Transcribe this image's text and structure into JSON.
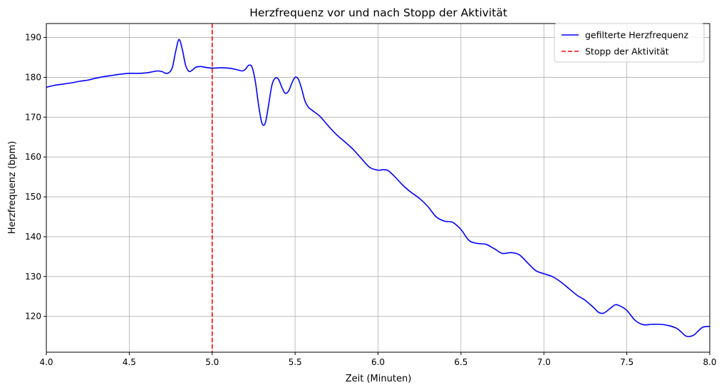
{
  "chart_data": {
    "type": "line",
    "title": "Herzfrequenz vor und nach Stopp der Aktivität",
    "xlabel": "Zeit (Minuten)",
    "ylabel": "Herzfrequenz (bpm)",
    "xlim": [
      4.0,
      8.0
    ],
    "ylim": [
      111,
      193.5
    ],
    "xticks": [
      4.0,
      4.5,
      5.0,
      5.5,
      6.0,
      6.5,
      7.0,
      7.5,
      8.0
    ],
    "xtick_labels": [
      "4.0",
      "4.5",
      "5.0",
      "5.5",
      "6.0",
      "6.5",
      "7.0",
      "7.5",
      "8.0"
    ],
    "yticks": [
      120,
      130,
      140,
      150,
      160,
      170,
      180,
      190
    ],
    "ytick_labels": [
      "120",
      "130",
      "140",
      "150",
      "160",
      "170",
      "180",
      "190"
    ],
    "grid": true,
    "legend_position": "top-right",
    "series": [
      {
        "name": "gefilterte Herzfrequenz",
        "color": "#0000ff",
        "style": "solid",
        "x": [
          4.0,
          4.05,
          4.1,
          4.15,
          4.2,
          4.25,
          4.3,
          4.35,
          4.4,
          4.45,
          4.5,
          4.55,
          4.6,
          4.63,
          4.67,
          4.7,
          4.72,
          4.74,
          4.76,
          4.78,
          4.8,
          4.82,
          4.84,
          4.86,
          4.88,
          4.9,
          4.93,
          4.96,
          5.0,
          5.05,
          5.1,
          5.14,
          5.18,
          5.2,
          5.22,
          5.24,
          5.26,
          5.28,
          5.3,
          5.32,
          5.34,
          5.36,
          5.38,
          5.4,
          5.42,
          5.44,
          5.46,
          5.48,
          5.5,
          5.52,
          5.54,
          5.56,
          5.58,
          5.6,
          5.65,
          5.7,
          5.75,
          5.8,
          5.85,
          5.9,
          5.95,
          6.0,
          6.03,
          6.06,
          6.1,
          6.15,
          6.2,
          6.25,
          6.3,
          6.35,
          6.4,
          6.45,
          6.5,
          6.55,
          6.6,
          6.65,
          6.7,
          6.75,
          6.8,
          6.85,
          6.9,
          6.95,
          7.0,
          7.05,
          7.1,
          7.15,
          7.2,
          7.25,
          7.3,
          7.33,
          7.36,
          7.4,
          7.43,
          7.46,
          7.5,
          7.55,
          7.6,
          7.65,
          7.7,
          7.75,
          7.8,
          7.83,
          7.86,
          7.9,
          7.93,
          7.96,
          8.0
        ],
        "y": [
          177.5,
          178.0,
          178.3,
          178.6,
          179.0,
          179.3,
          179.8,
          180.2,
          180.5,
          180.8,
          181.0,
          181.0,
          181.1,
          181.3,
          181.6,
          181.4,
          181.0,
          181.2,
          182.5,
          186.5,
          189.5,
          187.0,
          183.0,
          181.5,
          181.8,
          182.5,
          182.7,
          182.5,
          182.3,
          182.4,
          182.3,
          182.0,
          181.6,
          182.0,
          183.0,
          182.6,
          179.0,
          173.0,
          168.5,
          168.5,
          173.0,
          178.0,
          179.8,
          179.5,
          177.5,
          176.0,
          176.5,
          178.5,
          180.0,
          179.5,
          177.0,
          174.0,
          172.5,
          171.8,
          170.2,
          167.8,
          165.6,
          163.8,
          161.9,
          159.6,
          157.4,
          156.7,
          156.8,
          156.6,
          155.1,
          152.9,
          151.1,
          149.6,
          147.6,
          145.0,
          143.9,
          143.6,
          141.8,
          139.0,
          138.3,
          138.1,
          137.0,
          135.8,
          136.0,
          135.5,
          133.5,
          131.5,
          130.7,
          130.0,
          128.7,
          127.0,
          125.3,
          124.0,
          122.2,
          121.0,
          120.8,
          122.0,
          122.9,
          122.6,
          121.5,
          119.0,
          117.9,
          118.0,
          118.0,
          117.7,
          117.0,
          116.0,
          115.0,
          115.2,
          116.3,
          117.3,
          117.5
        ]
      },
      {
        "name": "Stopp der Aktivität",
        "color": "#ff0000",
        "style": "dashed",
        "x": [
          5.0,
          5.0
        ],
        "y": [
          111,
          193.5
        ]
      }
    ]
  }
}
